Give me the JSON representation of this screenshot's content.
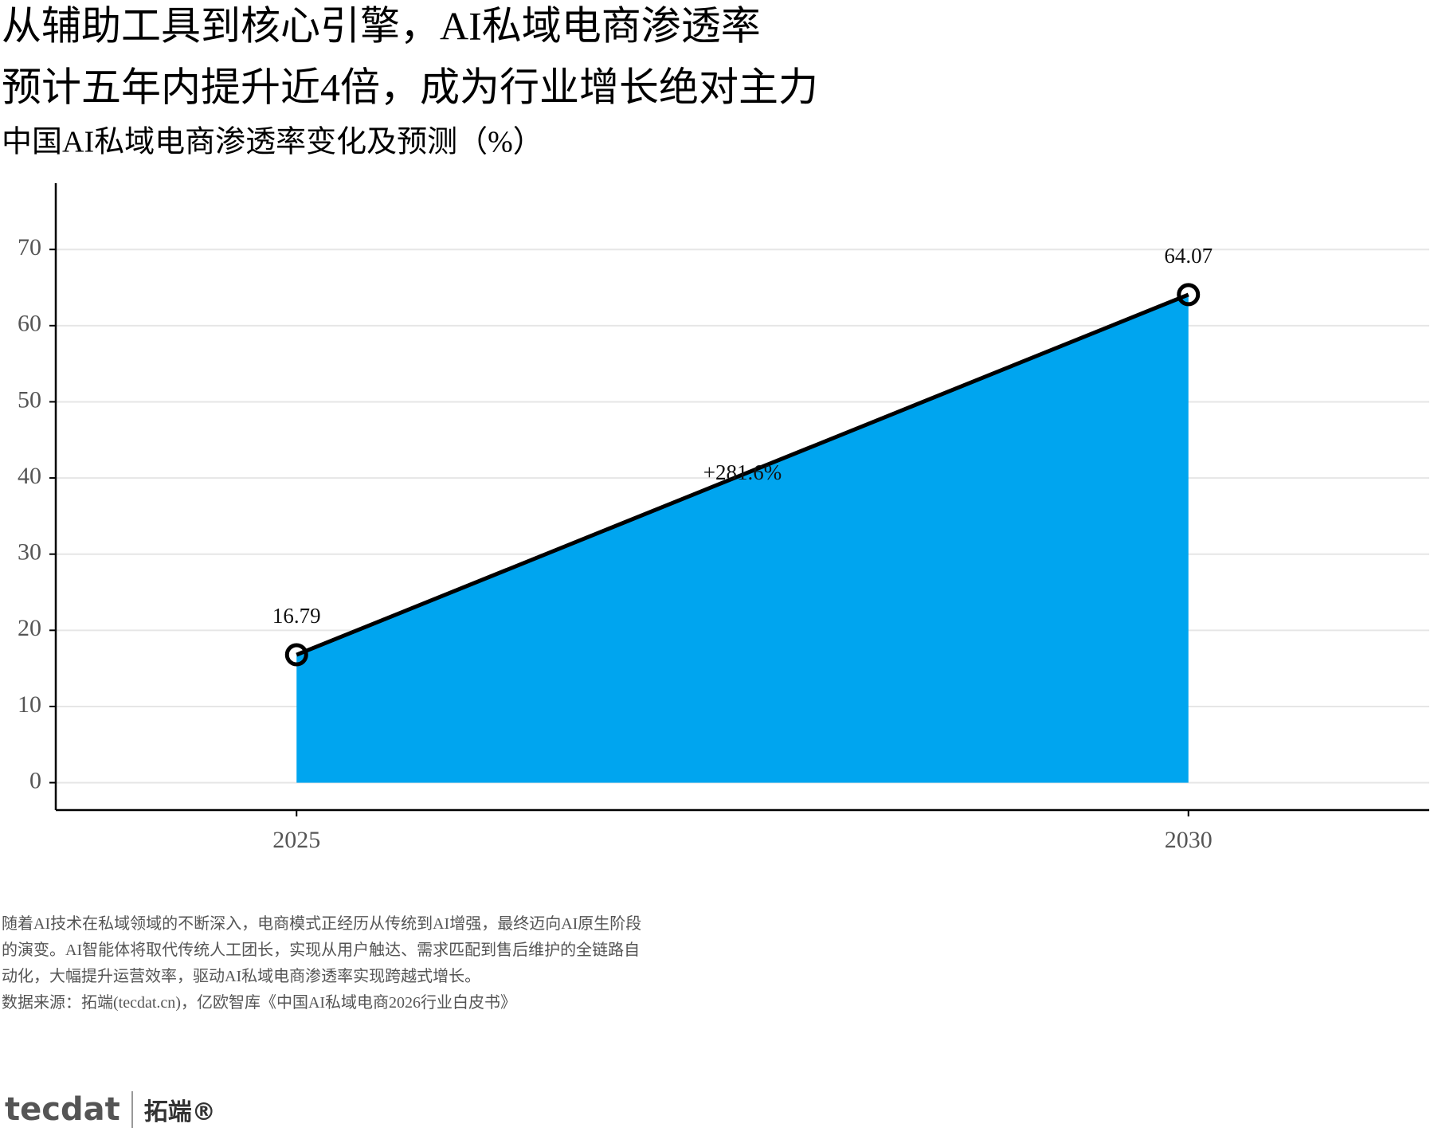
{
  "chart_data": {
    "type": "area",
    "title": [
      "从辅助工具到核心引擎，AI私域电商渗透率",
      "预计五年内提升近4倍，成为行业增长绝对主力"
    ],
    "subtitle": "中国AI私域电商渗透率变化及预测（%）",
    "x": [
      2025,
      2030
    ],
    "series": [
      {
        "color": "#00a5ef",
        "values": [
          16.79,
          64.07
        ]
      }
    ],
    "annotation": "+281.6%",
    "xlim": [
      2023.65,
      2031.35
    ],
    "xticks": [
      2025,
      2030
    ],
    "ylim": [
      -3.6,
      78.7
    ],
    "yticks": [
      0,
      10,
      20,
      30,
      40,
      50,
      60,
      70
    ],
    "grid": true
  },
  "footer": {
    "note": "随着AI技术在私域领域的不断深入，电商模式正经历从传统到AI增强，最终迈向AI原生阶段的演变。AI智能体将取代传统人工团长，实现从用户触达、需求匹配到售后维护的全链路自动化，大幅提升运营效率，驱动AI私域电商渗透率实现跨越式增长。",
    "source": "数据来源：拓端(tecdat.cn)，亿欧智库《中国AI私域电商2026行业白皮书》"
  },
  "brand": {
    "logo": "tecdat",
    "name": "拓端®"
  }
}
